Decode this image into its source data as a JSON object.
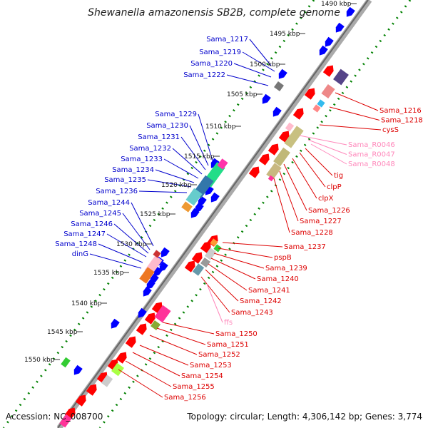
{
  "title": "Shewanella amazonensis SB2B, complete genome",
  "accession": "Accession: NC_008700",
  "summary": "Topology: circular; Length: 4,306,142 bp; Genes: 3,774",
  "colors": {
    "forward": "#ff0000",
    "reverse": "#0000ff",
    "rna": "#ff99cc",
    "backbone": "#999999",
    "tick": "#008000"
  },
  "kbp_labels": [
    "1490 kbp",
    "1495 kbp",
    "1500 kbp",
    "1505 kbp",
    "1510 kbp",
    "1515 kbp",
    "1520 kbp",
    "1525 kbp",
    "1530 kbp",
    "1535 kbp",
    "1540 kbp",
    "1545 kbp",
    "1550 kbp"
  ],
  "left_labels": [
    "Sama_1217",
    "Sama_1219",
    "Sama_1220",
    "Sama_1222",
    "Sama_1229",
    "Sama_1230",
    "Sama_1231",
    "Sama_1232",
    "Sama_1233",
    "Sama_1234",
    "Sama_1235",
    "Sama_1236",
    "Sama_1244",
    "Sama_1245",
    "Sama_1246",
    "Sama_1247",
    "Sama_1248",
    "dinG"
  ],
  "right_red_top": [
    "Sama_1216",
    "Sama_1218",
    "cysS"
  ],
  "right_pink_top": [
    "Sama_R0046",
    "Sama_R0047",
    "Sama_R0048"
  ],
  "right_red_mid": [
    "tig",
    "clpP",
    "clpX",
    "Sama_1226",
    "Sama_1227",
    "Sama_1228"
  ],
  "right_red_low": [
    "Sama_1237",
    "pspB",
    "Sama_1239",
    "Sama_1240",
    "Sama_1241",
    "Sama_1242",
    "Sama_1243"
  ],
  "right_pink_low": [
    "ffs"
  ],
  "right_red_bottom": [
    "Sama_1250",
    "Sama_1251",
    "Sama_1252",
    "Sama_1253",
    "Sama_1254",
    "Sama_1255",
    "Sama_1256"
  ]
}
